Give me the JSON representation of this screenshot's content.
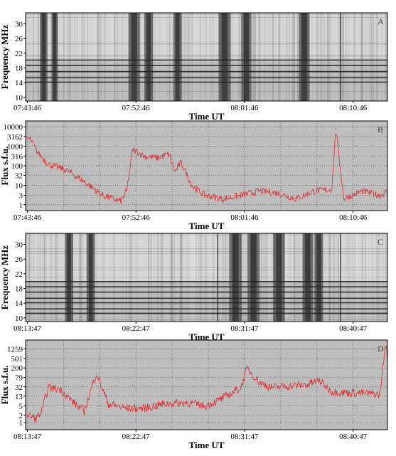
{
  "figure": {
    "panels": [
      {
        "kind": "spectrogram",
        "letter": "A",
        "ylabel": "Frequency MHz",
        "xlabel": "Time UT",
        "yticks": [
          "10",
          "14",
          "18",
          "22",
          "26",
          "30"
        ],
        "xticks": [
          "07:43:46",
          "07:52:46",
          "08:01:46",
          "08:10:46"
        ],
        "dark_bursts": [
          0.05,
          0.08,
          0.3,
          0.34,
          0.42,
          0.55,
          0.61,
          0.77
        ],
        "band_lines": [
          0.22,
          0.27,
          0.34,
          0.41,
          0.47
        ]
      },
      {
        "kind": "lightcurve",
        "letter": "B",
        "ylabel": "Flux s.f.u.",
        "xlabel": "Time UT",
        "yticks": [
          "1",
          "3",
          "10",
          "32",
          "100",
          "316",
          "1000",
          "3162",
          "10000"
        ],
        "xticks": [
          "07:43:46",
          "07:52:46",
          "08:01:46",
          "08:10:46"
        ]
      },
      {
        "kind": "spectrogram",
        "letter": "C",
        "ylabel": "Frequency MHz",
        "xlabel": "Time UT",
        "yticks": [
          "10",
          "14",
          "18",
          "22",
          "26",
          "30"
        ],
        "xticks": [
          "08:13:47",
          "08:22:47",
          "08:31:47",
          "08:40:47"
        ],
        "dark_bursts": [
          0.12,
          0.18,
          0.58,
          0.63,
          0.7,
          0.78,
          0.81
        ],
        "band_lines": [
          0.1,
          0.15,
          0.22,
          0.27,
          0.34,
          0.4,
          0.46
        ]
      },
      {
        "kind": "lightcurve",
        "letter": "D",
        "ylabel": "Flux s.f.u.",
        "xlabel": "Time UT",
        "yticks": [
          "1",
          "2",
          "5",
          "13",
          "32",
          "79",
          "200",
          "501",
          "1259"
        ],
        "xticks": [
          "08:13:47",
          "08:22:47",
          "08:31:47",
          "08:40:47"
        ]
      }
    ]
  },
  "chart_data": [
    {
      "type": "heatmap",
      "panel": "A",
      "xlabel": "Time UT",
      "ylabel": "Frequency MHz",
      "x_ticks": [
        "07:43:46",
        "07:52:46",
        "08:01:46",
        "08:10:46"
      ],
      "y_ticks": [
        10,
        14,
        18,
        22,
        26,
        30
      ],
      "ylim": [
        9,
        33
      ]
    },
    {
      "type": "line",
      "panel": "B",
      "xlabel": "Time UT",
      "ylabel": "Flux s.f.u.",
      "y_scale": "log",
      "ylim": [
        0.5,
        20000
      ],
      "grid": true,
      "line_color": "#e8272a",
      "x_ticks": [
        "07:43:46",
        "07:52:46",
        "08:01:46",
        "08:10:46"
      ],
      "x": [
        "07:40:30",
        "07:42:00",
        "07:43:00",
        "07:44:00",
        "07:44:30",
        "07:45:30",
        "07:47:00",
        "07:48:30",
        "07:50:00",
        "07:51:30",
        "07:52:00",
        "07:52:30",
        "07:53:30",
        "07:54:30",
        "07:55:30",
        "07:56:00",
        "07:56:30",
        "07:57:30",
        "07:58:30",
        "08:00:00",
        "08:01:30",
        "08:03:00",
        "08:04:30",
        "08:06:00",
        "08:07:30",
        "08:09:00",
        "08:09:20",
        "08:10:00",
        "08:11:30",
        "08:13:00",
        "08:14:30",
        "08:15:30"
      ],
      "values": [
        1,
        1.5,
        2000,
        2500,
        600,
        120,
        60,
        15,
        3,
        1.5,
        5,
        700,
        300,
        250,
        400,
        50,
        150,
        8,
        3,
        2,
        3,
        5,
        4,
        2,
        5,
        6,
        8000,
        2,
        5,
        3,
        10,
        2
      ]
    },
    {
      "type": "heatmap",
      "panel": "C",
      "xlabel": "Time UT",
      "ylabel": "Frequency MHz",
      "x_ticks": [
        "08:13:47",
        "08:22:47",
        "08:31:47",
        "08:40:47"
      ],
      "y_ticks": [
        10,
        14,
        18,
        22,
        26,
        30
      ],
      "ylim": [
        9,
        33
      ]
    },
    {
      "type": "line",
      "panel": "D",
      "xlabel": "Time UT",
      "ylabel": "Flux s.f.u.",
      "y_scale": "log",
      "ylim": [
        0.5,
        3000
      ],
      "grid": true,
      "line_color": "#e8272a",
      "x_ticks": [
        "08:13:47",
        "08:22:47",
        "08:31:47",
        "08:40:47"
      ],
      "x": [
        "08:13:47",
        "08:14:30",
        "08:15:00",
        "08:15:30",
        "08:16:30",
        "08:17:30",
        "08:18:30",
        "08:19:30",
        "08:20:30",
        "08:22:00",
        "08:23:30",
        "08:25:00",
        "08:27:00",
        "08:28:30",
        "08:29:30",
        "08:30:30",
        "08:31:30",
        "08:32:00",
        "08:33:00",
        "08:34:00",
        "08:35:30",
        "08:37:00",
        "08:38:00",
        "08:39:00",
        "08:40:30",
        "08:42:00",
        "08:43:00",
        "08:43:30",
        "08:43:50"
      ],
      "values": [
        2,
        1.5,
        3,
        30,
        25,
        8,
        3,
        120,
        6,
        4,
        4,
        6,
        7,
        5,
        8,
        15,
        30,
        200,
        50,
        30,
        35,
        40,
        60,
        20,
        18,
        17,
        15,
        2500,
        20
      ]
    }
  ]
}
